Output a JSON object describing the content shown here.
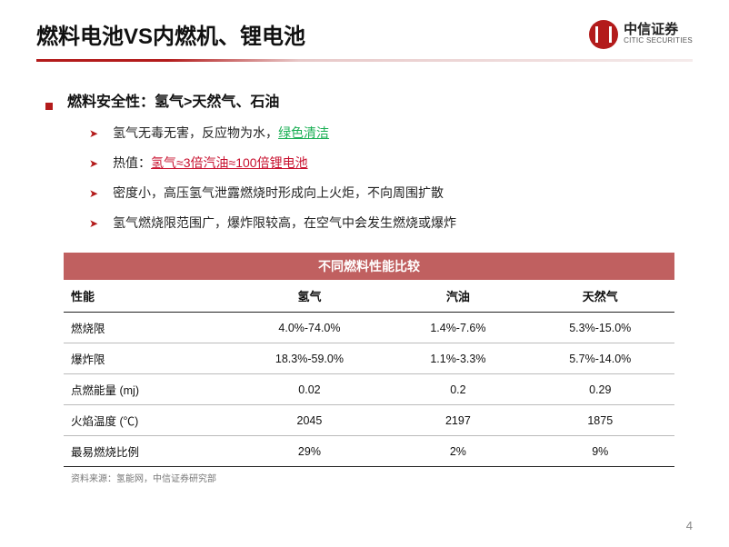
{
  "header": {
    "title": "燃料电池VS内燃机、锂电池",
    "logo": {
      "cn": "中信证券",
      "en": "CITIC SECURITIES"
    }
  },
  "bullet": {
    "main_prefix": "燃料安全性：氢气>天然气、石油",
    "items": [
      {
        "p1": "氢气无毒无害，反应物为水，",
        "green": "绿色清洁",
        "p2": ""
      },
      {
        "p1": "热值：",
        "red": "氢气≈3倍汽油≈100倍锂电池",
        "p2": ""
      },
      {
        "p1": "密度小，高压氢气泄露燃烧时形成向上火炬，不向周围扩散",
        "p2": ""
      },
      {
        "p1": "氢气燃烧限范围广，爆炸限较高，在空气中会发生燃烧或爆炸",
        "p2": ""
      }
    ]
  },
  "table": {
    "title": "不同燃料性能比较",
    "title_bg": "#c06060",
    "columns": [
      "性能",
      "氢气",
      "汽油",
      "天然气"
    ],
    "rows": [
      [
        "燃烧限",
        "4.0%-74.0%",
        "1.4%-7.6%",
        "5.3%-15.0%"
      ],
      [
        "爆炸限",
        "18.3%-59.0%",
        "1.1%-3.3%",
        "5.7%-14.0%"
      ],
      [
        "点燃能量 (mj)",
        "0.02",
        "0.2",
        "0.29"
      ],
      [
        "火焰温度 (℃)",
        "2045",
        "2197",
        "1875"
      ],
      [
        "最易燃烧比例",
        "29%",
        "2%",
        "9%"
      ]
    ],
    "source": "资料来源：氢能网，中信证券研究部"
  },
  "page": "4"
}
